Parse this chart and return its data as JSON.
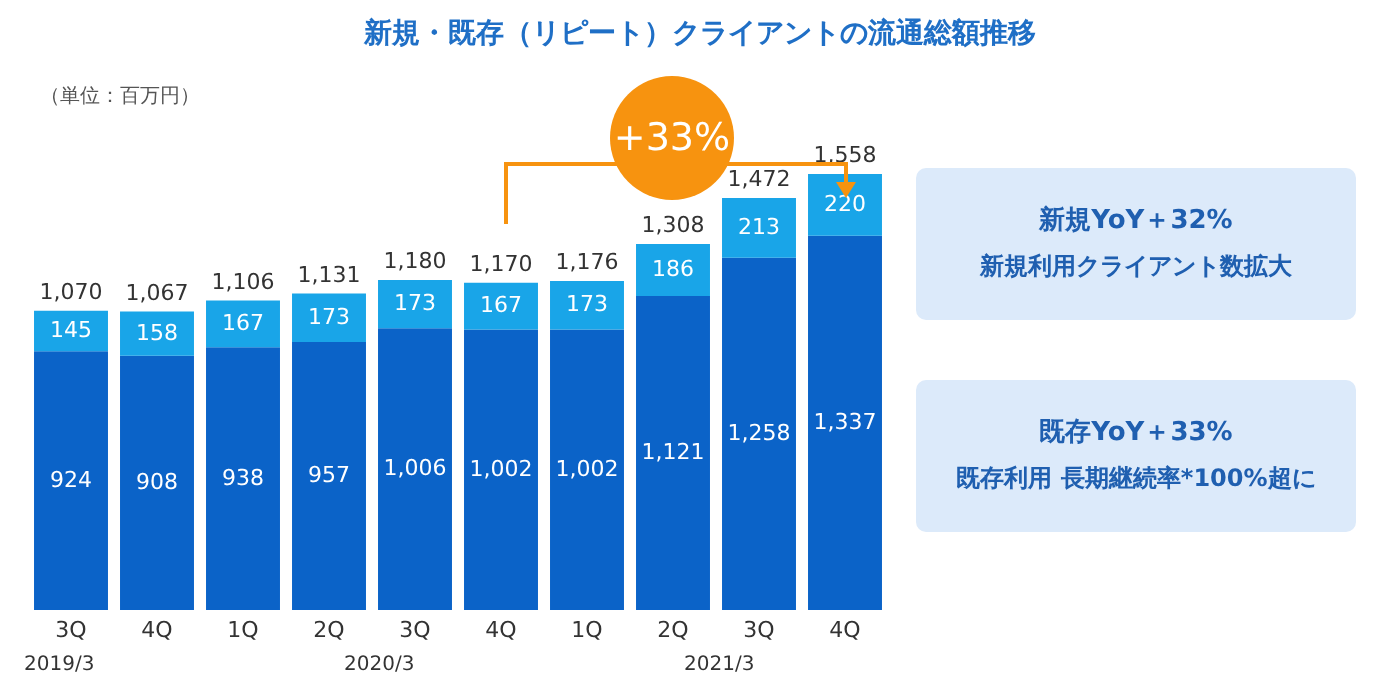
{
  "chart_data": {
    "type": "bar",
    "title": "新規・既存（リピート）クライアントの流通総額推移",
    "categories": [
      "3Q",
      "4Q",
      "1Q",
      "2Q",
      "3Q",
      "4Q",
      "1Q",
      "2Q",
      "3Q",
      "4Q"
    ],
    "stacked": true,
    "series": [
      {
        "color": "#0b63c8",
        "values": [
          924,
          908,
          938,
          957,
          1006,
          1002,
          1002,
          1121,
          1258,
          1337
        ],
        "value_labels": [
          "924",
          "908",
          "938",
          "957",
          "1,006",
          "1,002",
          "1,002",
          "1,121",
          "1,258",
          "1,337"
        ]
      },
      {
        "color": "#19a5e8",
        "values": [
          145,
          158,
          167,
          173,
          173,
          167,
          173,
          186,
          213,
          220
        ],
        "value_labels": [
          "145",
          "158",
          "167",
          "173",
          "173",
          "167",
          "173",
          "186",
          "213",
          "220"
        ]
      }
    ],
    "totals": [
      "1,070",
      "1,067",
      "1,106",
      "1,131",
      "1,180",
      "1,170",
      "1,176",
      "1,308",
      "1,472",
      "1,558"
    ],
    "annotations": [
      "（単位：百万円）",
      "+33%",
      "新規YoY＋32%",
      "新規利用クライアント数拡大",
      "既存YoY＋33%",
      "既存利用 長期継続率*100%超に",
      "2019/3",
      "2020/3",
      "2021/3"
    ]
  }
}
